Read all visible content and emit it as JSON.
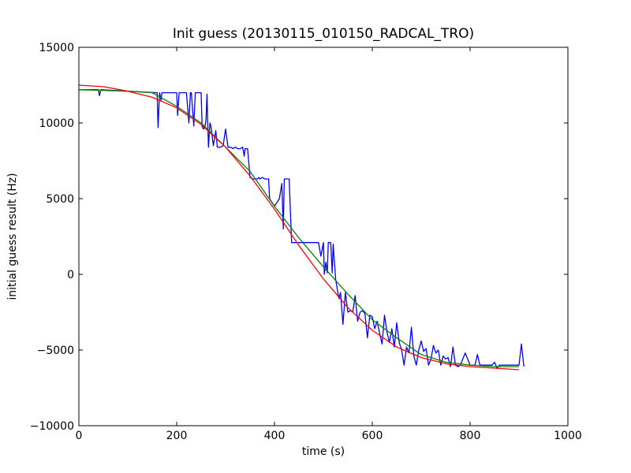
{
  "chart_data": {
    "type": "line",
    "title": "Init guess (20130115_010150_RADCAL_TRO)",
    "xlabel": "time (s)",
    "ylabel": "initial guess result (Hz)",
    "xlim": [
      0,
      1000
    ],
    "ylim": [
      -10000,
      15000
    ],
    "xticks": [
      0,
      200,
      400,
      600,
      800,
      1000
    ],
    "yticks": [
      -10000,
      -5000,
      0,
      5000,
      10000,
      15000
    ],
    "xtick_labels": [
      "0",
      "200",
      "400",
      "600",
      "800",
      "1000"
    ],
    "ytick_labels": [
      "−10000",
      "−5000",
      "0",
      "5000",
      "10000",
      "15000"
    ],
    "grid": false,
    "legend": "none",
    "series": [
      {
        "color": "#0000ff",
        "x": [
          0,
          40,
          42,
          45,
          100,
          160,
          162,
          165,
          168,
          170,
          200,
          202,
          205,
          210,
          220,
          225,
          228,
          230,
          235,
          238,
          240,
          245,
          250,
          252,
          255,
          258,
          260,
          262,
          265,
          268,
          270,
          275,
          280,
          283,
          285,
          290,
          295,
          300,
          305,
          310,
          315,
          320,
          325,
          330,
          335,
          338,
          340,
          345,
          350,
          355,
          360,
          365,
          368,
          370,
          375,
          380,
          385,
          388,
          390,
          400,
          410,
          415,
          418,
          420,
          425,
          430,
          435,
          440,
          445,
          450,
          460,
          470,
          475,
          480,
          490,
          495,
          500,
          502,
          505,
          508,
          510,
          515,
          518,
          520,
          525,
          530,
          532,
          535,
          540,
          545,
          550,
          555,
          560,
          565,
          570,
          575,
          580,
          585,
          590,
          595,
          600,
          605,
          610,
          615,
          620,
          625,
          630,
          635,
          640,
          645,
          650,
          655,
          660,
          665,
          670,
          675,
          680,
          685,
          690,
          695,
          700,
          705,
          710,
          715,
          720,
          725,
          730,
          735,
          740,
          745,
          750,
          755,
          760,
          765,
          770,
          775,
          780,
          785,
          790,
          800,
          810,
          815,
          820,
          830,
          840,
          845,
          850,
          855,
          860,
          870,
          880,
          890,
          900,
          905,
          910
        ],
        "y": [
          12200,
          12200,
          11800,
          12200,
          12100,
          12000,
          9700,
          12000,
          11500,
          12000,
          12000,
          10500,
          12000,
          12000,
          12000,
          10000,
          12000,
          12000,
          9800,
          12000,
          12000,
          12000,
          12000,
          9800,
          9600,
          9800,
          10200,
          11900,
          8400,
          10000,
          9800,
          8500,
          9500,
          8400,
          8400,
          8400,
          8500,
          9600,
          8400,
          8400,
          8300,
          8400,
          8300,
          8300,
          8400,
          7800,
          8300,
          8300,
          6400,
          6300,
          6300,
          6300,
          6400,
          6300,
          6400,
          6300,
          6300,
          6300,
          5000,
          4500,
          5000,
          6000,
          3000,
          6300,
          6300,
          6300,
          2100,
          2100,
          2100,
          2100,
          2100,
          2100,
          2100,
          2100,
          2100,
          1200,
          2100,
          0,
          800,
          100,
          2100,
          2100,
          100,
          2000,
          -300,
          -1300,
          -1600,
          -1200,
          -3300,
          -1200,
          -2500,
          -2400,
          -2500,
          -1400,
          -3100,
          -2500,
          -2400,
          -2600,
          -4200,
          -2700,
          -2800,
          -3600,
          -3100,
          -3900,
          -4600,
          -2700,
          -3800,
          -4500,
          -3600,
          -4800,
          -3200,
          -4500,
          -5000,
          -6000,
          -4800,
          -5200,
          -3500,
          -5400,
          -6000,
          -5000,
          -4400,
          -5100,
          -4900,
          -6000,
          -5600,
          -4700,
          -5200,
          -5000,
          -6000,
          -5400,
          -5600,
          -5500,
          -6100,
          -4800,
          -6000,
          -6100,
          -6000,
          -5600,
          -5200,
          -6000,
          -6000,
          -5300,
          -6000,
          -6000,
          -6000,
          -6000,
          -5800,
          -6200,
          -6000,
          -6000,
          -6000,
          -6000,
          -6000,
          -4600,
          -6100
        ]
      },
      {
        "color": "#008000",
        "x": [
          0,
          50,
          100,
          150,
          200,
          250,
          300,
          350,
          400,
          450,
          500,
          550,
          600,
          650,
          700,
          750,
          800,
          850,
          900
        ],
        "y": [
          12200,
          12150,
          12100,
          12000,
          11100,
          10000,
          8400,
          6800,
          4500,
          2400,
          500,
          -1300,
          -3000,
          -4200,
          -5300,
          -5800,
          -6000,
          -6100,
          -6100
        ]
      },
      {
        "color": "#ff0000",
        "x": [
          0,
          50,
          100,
          150,
          200,
          250,
          300,
          350,
          400,
          450,
          500,
          550,
          600,
          650,
          700,
          750,
          800,
          850,
          900
        ],
        "y": [
          12500,
          12400,
          12100,
          11700,
          11000,
          9900,
          8400,
          6500,
          4300,
          1900,
          -300,
          -2200,
          -3700,
          -4800,
          -5500,
          -5900,
          -6100,
          -6200,
          -6300
        ]
      }
    ]
  }
}
